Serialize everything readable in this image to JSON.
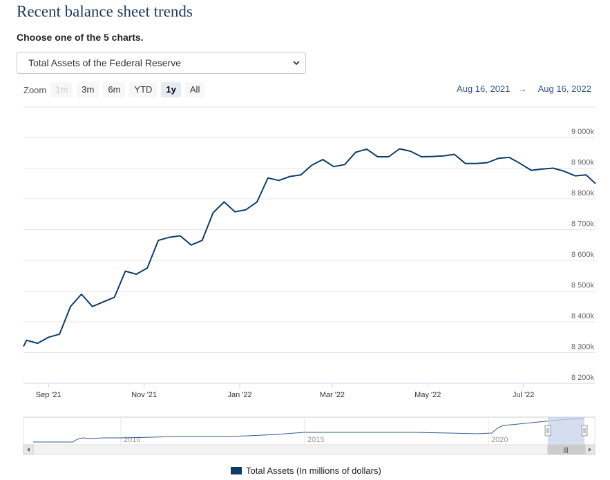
{
  "page": {
    "title": "Recent balance sheet trends",
    "subtitle": "Choose one of the 5 charts.",
    "select_value": "Total Assets of the Federal Reserve"
  },
  "zoom": {
    "label": "Zoom",
    "buttons": [
      {
        "label": "1m",
        "state": "disabled"
      },
      {
        "label": "3m",
        "state": "normal"
      },
      {
        "label": "6m",
        "state": "normal"
      },
      {
        "label": "YTD",
        "state": "normal"
      },
      {
        "label": "1y",
        "state": "active"
      },
      {
        "label": "All",
        "state": "normal"
      }
    ]
  },
  "date_range": {
    "from": "Aug 16, 2021",
    "arrow": "→",
    "to": "Aug 16, 2022"
  },
  "navigator": {
    "tick_labels": [
      "2010",
      "2015",
      "2020"
    ],
    "handle_grip": "|||"
  },
  "colors": {
    "line": "#0b3c6a",
    "grid": "#e6e6e6",
    "nav_fill": "#c7d3ea",
    "accent": "#33558b"
  },
  "chart_data": {
    "type": "line",
    "series": [
      {
        "name": "Total Assets (In millions of dollars)",
        "values": [
          8320000,
          8340000,
          8330000,
          8350000,
          8360000,
          8450000,
          8490000,
          8450000,
          8465000,
          8480000,
          8565000,
          8555000,
          8575000,
          8665000,
          8675000,
          8680000,
          8650000,
          8665000,
          8755000,
          8790000,
          8758000,
          8765000,
          8790000,
          8868000,
          8860000,
          8873000,
          8878000,
          8910000,
          8928000,
          8905000,
          8912000,
          8952000,
          8962000,
          8937000,
          8937000,
          8963000,
          8955000,
          8937000,
          8938000,
          8940000,
          8945000,
          8915000,
          8915000,
          8918000,
          8932000,
          8935000,
          8915000,
          8893000,
          8897000,
          8900000,
          8890000,
          8875000,
          8878000,
          8850000
        ]
      }
    ],
    "x_dates": [
      "2021-08-16",
      "2021-08-18",
      "2021-08-25",
      "2021-09-01",
      "2021-09-08",
      "2021-09-15",
      "2021-09-22",
      "2021-09-29",
      "2021-10-06",
      "2021-10-13",
      "2021-10-20",
      "2021-10-27",
      "2021-11-03",
      "2021-11-10",
      "2021-11-17",
      "2021-11-24",
      "2021-12-01",
      "2021-12-08",
      "2021-12-15",
      "2021-12-22",
      "2021-12-29",
      "2022-01-05",
      "2022-01-12",
      "2022-01-19",
      "2022-01-26",
      "2022-02-02",
      "2022-02-09",
      "2022-02-16",
      "2022-02-23",
      "2022-03-02",
      "2022-03-09",
      "2022-03-16",
      "2022-03-23",
      "2022-03-30",
      "2022-04-06",
      "2022-04-13",
      "2022-04-20",
      "2022-04-27",
      "2022-05-04",
      "2022-05-11",
      "2022-05-18",
      "2022-05-25",
      "2022-06-01",
      "2022-06-08",
      "2022-06-15",
      "2022-06-22",
      "2022-06-29",
      "2022-07-06",
      "2022-07-13",
      "2022-07-20",
      "2022-07-27",
      "2022-08-03",
      "2022-08-10",
      "2022-08-16"
    ],
    "x_tick_labels": [
      "Sep '21",
      "Nov '21",
      "Jan '22",
      "Mar '22",
      "May '22",
      "Jul '22"
    ],
    "x_tick_dates": [
      "2021-09-01",
      "2021-11-01",
      "2022-01-01",
      "2022-03-01",
      "2022-05-01",
      "2022-07-01"
    ],
    "y_ticks": [
      8200000,
      8300000,
      8400000,
      8500000,
      8600000,
      8700000,
      8800000,
      8900000,
      9000000
    ],
    "y_tick_labels": [
      "8 200k",
      "8 300k",
      "8 400k",
      "8 500k",
      "8 600k",
      "8 700k",
      "8 800k",
      "8 900k",
      "9 000k"
    ],
    "ylim": [
      8200000,
      9000000
    ],
    "x_range": [
      "2021-08-16",
      "2022-08-16"
    ],
    "grid": true,
    "legend_position": "bottom-center"
  }
}
